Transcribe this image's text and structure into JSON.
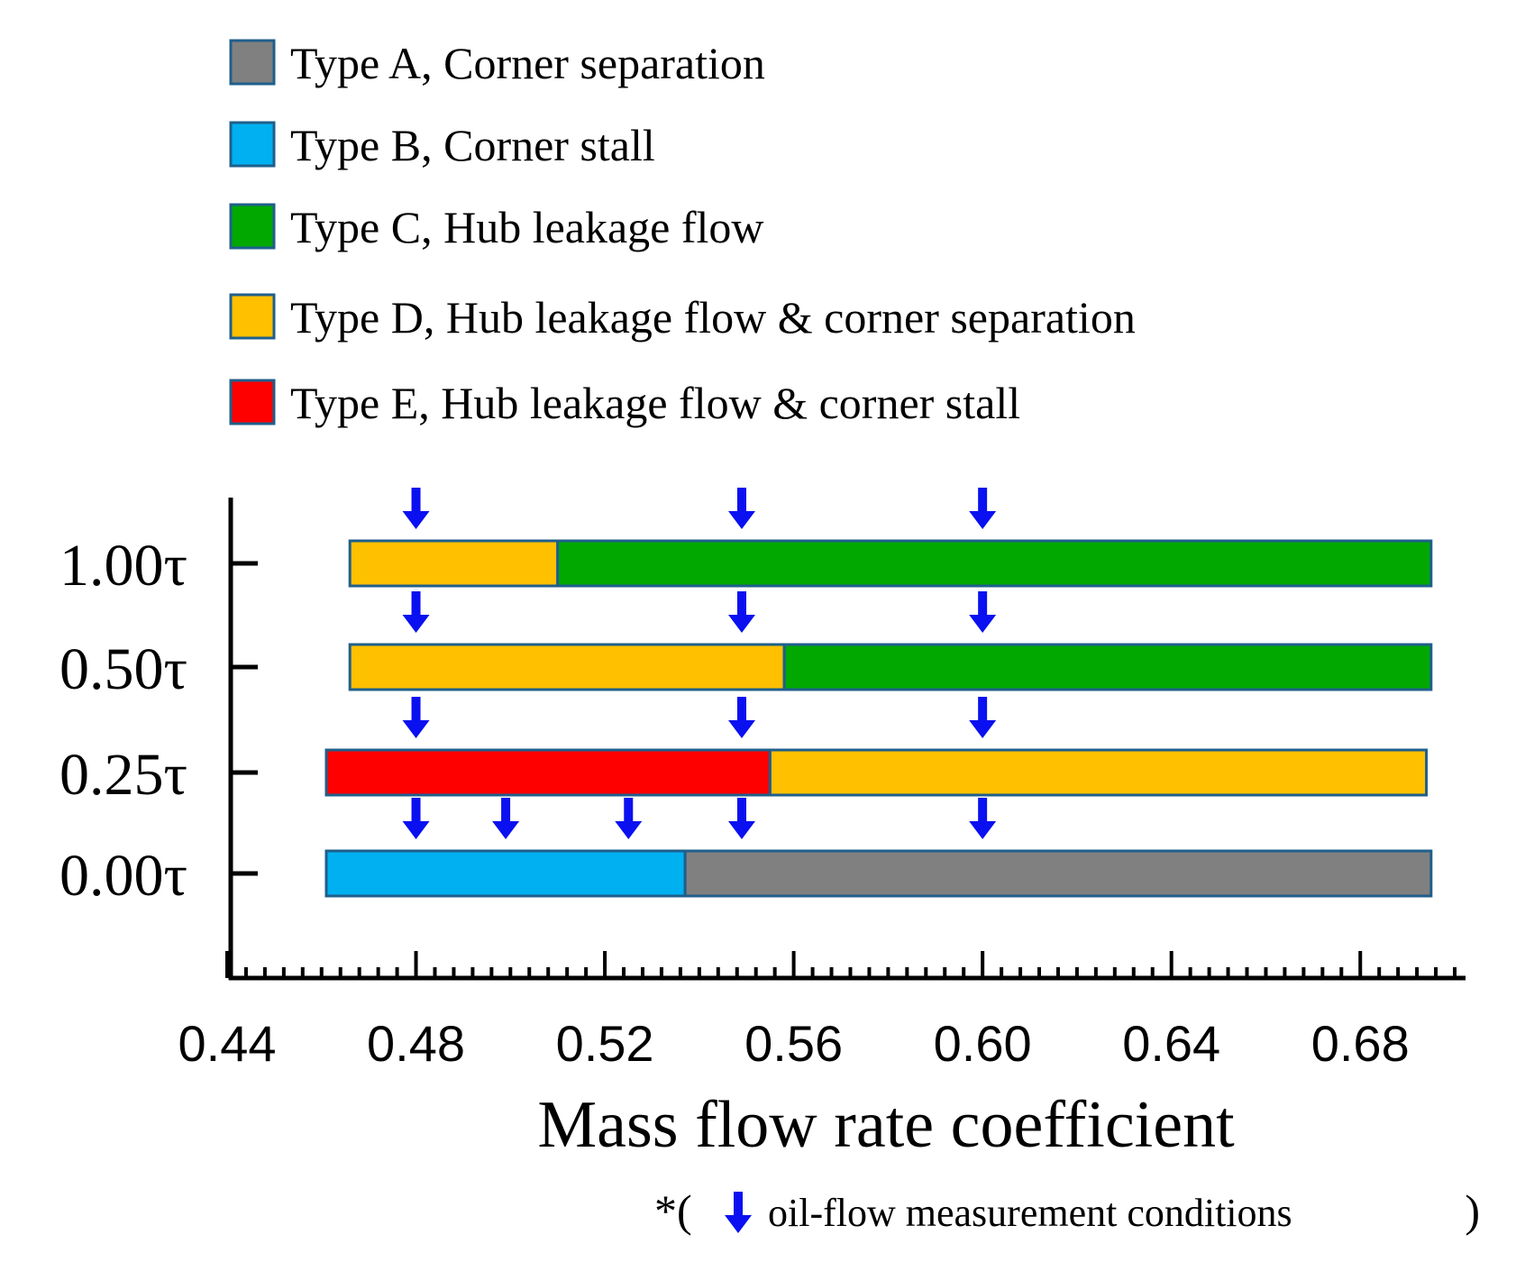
{
  "chart_data": {
    "type": "bar",
    "subtype": "horizontal-segmented-range",
    "xlabel": "Mass flow rate coefficient",
    "xlim": [
      0.44,
      0.7
    ],
    "xticks": [
      "0.44",
      "0.48",
      "0.52",
      "0.56",
      "0.60",
      "0.64",
      "0.68"
    ],
    "xtick_values": [
      0.44,
      0.48,
      0.52,
      0.56,
      0.6,
      0.64,
      0.68
    ],
    "minor_tick_step": 0.004,
    "legend": [
      {
        "key": "A",
        "label": "Type A, Corner separation",
        "color": "#808080"
      },
      {
        "key": "B",
        "label": "Type B, Corner stall",
        "color": "#00B0F0"
      },
      {
        "key": "C",
        "label": "Type C, Hub leakage flow",
        "color": "#00A800"
      },
      {
        "key": "D",
        "label": "Type D, Hub leakage flow & corner separation",
        "color": "#FFC000"
      },
      {
        "key": "E",
        "label": "Type E, Hub leakage flow & corner stall",
        "color": "#FF0000"
      }
    ],
    "rows": [
      {
        "label": "1.00τ",
        "segments": [
          {
            "type": "D",
            "start": 0.466,
            "end": 0.51
          },
          {
            "type": "C",
            "start": 0.51,
            "end": 0.695
          }
        ],
        "markers": [
          0.48,
          0.549,
          0.6
        ]
      },
      {
        "label": "0.50τ",
        "segments": [
          {
            "type": "D",
            "start": 0.466,
            "end": 0.558
          },
          {
            "type": "C",
            "start": 0.558,
            "end": 0.695
          }
        ],
        "markers": [
          0.48,
          0.549,
          0.6
        ]
      },
      {
        "label": "0.25τ",
        "segments": [
          {
            "type": "E",
            "start": 0.461,
            "end": 0.555
          },
          {
            "type": "D",
            "start": 0.555,
            "end": 0.694
          }
        ],
        "markers": [
          0.48,
          0.549,
          0.6
        ]
      },
      {
        "label": "0.00τ",
        "segments": [
          {
            "type": "B",
            "start": 0.461,
            "end": 0.537
          },
          {
            "type": "A",
            "start": 0.537,
            "end": 0.695
          }
        ],
        "markers": [
          0.48,
          0.499,
          0.525,
          0.549,
          0.6
        ]
      }
    ],
    "marker_color": "#0A10F0",
    "footnote_prefix": "*(",
    "footnote_text": "oil-flow measurement conditions",
    "footnote_suffix": ")"
  }
}
